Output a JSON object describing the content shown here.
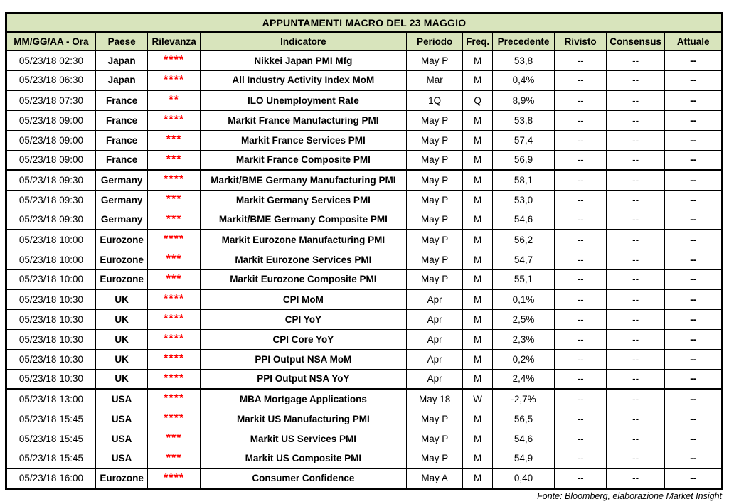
{
  "title": "APPUNTAMENTI MACRO DEL 23 MAGGIO",
  "footer": "Fonte: Bloomberg, elaborazione Market Insight",
  "colors": {
    "header_bg": "#d8e4bc",
    "star_red": "#ff0000",
    "border": "#000000"
  },
  "columns": {
    "date": "MM/GG/AA - Ora",
    "country": "Paese",
    "relevance": "Rilevanza",
    "indicator": "Indicatore",
    "period": "Periodo",
    "freq": "Freq.",
    "previous": "Precedente",
    "revised": "Rivisto",
    "consensus": "Consensus",
    "actual": "Attuale"
  },
  "rows": [
    {
      "datetime": "05/23/18 02:30",
      "country": "Japan",
      "stars": "****",
      "indicator": "Nikkei Japan PMI Mfg",
      "period": "May P",
      "freq": "M",
      "previous": "53,8",
      "revised": "--",
      "consensus": "--",
      "actual": "--",
      "group_start": false
    },
    {
      "datetime": "05/23/18 06:30",
      "country": "Japan",
      "stars": "****",
      "indicator": "All Industry Activity Index MoM",
      "period": "Mar",
      "freq": "M",
      "previous": "0,4%",
      "revised": "--",
      "consensus": "--",
      "actual": "--",
      "group_start": false
    },
    {
      "datetime": "05/23/18 07:30",
      "country": "France",
      "stars": "**",
      "indicator": "ILO Unemployment Rate",
      "period": "1Q",
      "freq": "Q",
      "previous": "8,9%",
      "revised": "--",
      "consensus": "--",
      "actual": "--",
      "group_start": true
    },
    {
      "datetime": "05/23/18 09:00",
      "country": "France",
      "stars": "****",
      "indicator": "Markit France Manufacturing PMI",
      "period": "May P",
      "freq": "M",
      "previous": "53,8",
      "revised": "--",
      "consensus": "--",
      "actual": "--",
      "group_start": false
    },
    {
      "datetime": "05/23/18 09:00",
      "country": "France",
      "stars": "***",
      "indicator": "Markit France Services PMI",
      "period": "May P",
      "freq": "M",
      "previous": "57,4",
      "revised": "--",
      "consensus": "--",
      "actual": "--",
      "group_start": false
    },
    {
      "datetime": "05/23/18 09:00",
      "country": "France",
      "stars": "***",
      "indicator": "Markit France Composite PMI",
      "period": "May P",
      "freq": "M",
      "previous": "56,9",
      "revised": "--",
      "consensus": "--",
      "actual": "--",
      "group_start": false
    },
    {
      "datetime": "05/23/18 09:30",
      "country": "Germany",
      "stars": "****",
      "indicator": "Markit/BME Germany Manufacturing PMI",
      "period": "May P",
      "freq": "M",
      "previous": "58,1",
      "revised": "--",
      "consensus": "--",
      "actual": "--",
      "group_start": true
    },
    {
      "datetime": "05/23/18 09:30",
      "country": "Germany",
      "stars": "***",
      "indicator": "Markit Germany Services PMI",
      "period": "May P",
      "freq": "M",
      "previous": "53,0",
      "revised": "--",
      "consensus": "--",
      "actual": "--",
      "group_start": false
    },
    {
      "datetime": "05/23/18 09:30",
      "country": "Germany",
      "stars": "***",
      "indicator": "Markit/BME Germany Composite PMI",
      "period": "May P",
      "freq": "M",
      "previous": "54,6",
      "revised": "--",
      "consensus": "--",
      "actual": "--",
      "group_start": false
    },
    {
      "datetime": "05/23/18 10:00",
      "country": "Eurozone",
      "stars": "****",
      "indicator": "Markit Eurozone Manufacturing PMI",
      "period": "May P",
      "freq": "M",
      "previous": "56,2",
      "revised": "--",
      "consensus": "--",
      "actual": "--",
      "group_start": true
    },
    {
      "datetime": "05/23/18 10:00",
      "country": "Eurozone",
      "stars": "***",
      "indicator": "Markit Eurozone Services PMI",
      "period": "May P",
      "freq": "M",
      "previous": "54,7",
      "revised": "--",
      "consensus": "--",
      "actual": "--",
      "group_start": false
    },
    {
      "datetime": "05/23/18 10:00",
      "country": "Eurozone",
      "stars": "***",
      "indicator": "Markit Eurozone Composite PMI",
      "period": "May P",
      "freq": "M",
      "previous": "55,1",
      "revised": "--",
      "consensus": "--",
      "actual": "--",
      "group_start": false
    },
    {
      "datetime": "05/23/18 10:30",
      "country": "UK",
      "stars": "****",
      "indicator": "CPI MoM",
      "period": "Apr",
      "freq": "M",
      "previous": "0,1%",
      "revised": "--",
      "consensus": "--",
      "actual": "--",
      "group_start": true
    },
    {
      "datetime": "05/23/18 10:30",
      "country": "UK",
      "stars": "****",
      "indicator": "CPI YoY",
      "period": "Apr",
      "freq": "M",
      "previous": "2,5%",
      "revised": "--",
      "consensus": "--",
      "actual": "--",
      "group_start": false
    },
    {
      "datetime": "05/23/18 10:30",
      "country": "UK",
      "stars": "****",
      "indicator": "CPI Core YoY",
      "period": "Apr",
      "freq": "M",
      "previous": "2,3%",
      "revised": "--",
      "consensus": "--",
      "actual": "--",
      "group_start": false
    },
    {
      "datetime": "05/23/18 10:30",
      "country": "UK",
      "stars": "****",
      "indicator": "PPI Output NSA MoM",
      "period": "Apr",
      "freq": "M",
      "previous": "0,2%",
      "revised": "--",
      "consensus": "--",
      "actual": "--",
      "group_start": false
    },
    {
      "datetime": "05/23/18 10:30",
      "country": "UK",
      "stars": "****",
      "indicator": "PPI Output NSA YoY",
      "period": "Apr",
      "freq": "M",
      "previous": "2,4%",
      "revised": "--",
      "consensus": "--",
      "actual": "--",
      "group_start": false
    },
    {
      "datetime": "05/23/18 13:00",
      "country": "USA",
      "stars": "****",
      "indicator": "MBA Mortgage Applications",
      "period": "May 18",
      "freq": "W",
      "previous": "-2,7%",
      "revised": "--",
      "consensus": "--",
      "actual": "--",
      "group_start": true
    },
    {
      "datetime": "05/23/18 15:45",
      "country": "USA",
      "stars": "****",
      "indicator": "Markit US Manufacturing PMI",
      "period": "May P",
      "freq": "M",
      "previous": "56,5",
      "revised": "--",
      "consensus": "--",
      "actual": "--",
      "group_start": false
    },
    {
      "datetime": "05/23/18 15:45",
      "country": "USA",
      "stars": "***",
      "indicator": "Markit US Services PMI",
      "period": "May P",
      "freq": "M",
      "previous": "54,6",
      "revised": "--",
      "consensus": "--",
      "actual": "--",
      "group_start": false
    },
    {
      "datetime": "05/23/18 15:45",
      "country": "USA",
      "stars": "***",
      "indicator": "Markit US Composite PMI",
      "period": "May P",
      "freq": "M",
      "previous": "54,9",
      "revised": "--",
      "consensus": "--",
      "actual": "--",
      "group_start": false
    },
    {
      "datetime": "05/23/18 16:00",
      "country": "Eurozone",
      "stars": "****",
      "indicator": "Consumer Confidence",
      "period": "May A",
      "freq": "M",
      "previous": "0,40",
      "revised": "--",
      "consensus": "--",
      "actual": "--",
      "group_start": true
    }
  ]
}
